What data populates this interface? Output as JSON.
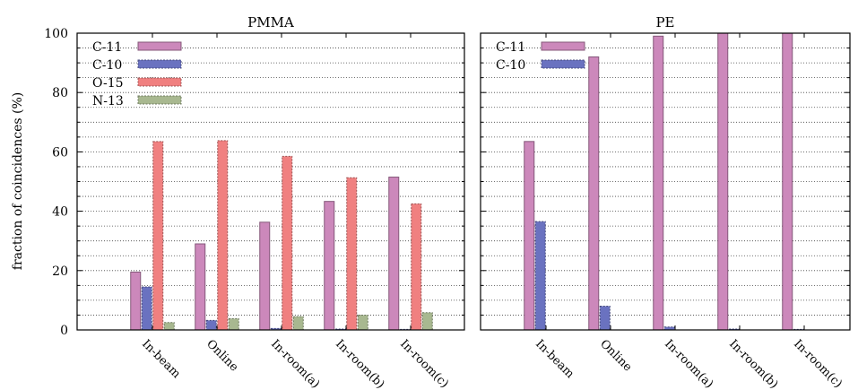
{
  "figure": {
    "ylabel": "fraction of coincidences (%)"
  },
  "colors": {
    "C-11": "#cc88bb",
    "C-10": "#6a72c0",
    "O-15": "#f08080",
    "N-13": "#a8b890"
  },
  "chart_data": [
    {
      "type": "bar",
      "title": "PMMA",
      "categories": [
        "In-beam",
        "Online",
        "In-room(a)",
        "In-room(b)",
        "In-room(c)"
      ],
      "series": [
        {
          "name": "C-11",
          "values": [
            19.5,
            29.0,
            36.3,
            43.3,
            51.5
          ]
        },
        {
          "name": "C-10",
          "values": [
            14.5,
            3.2,
            0.5,
            0.3,
            0.2
          ]
        },
        {
          "name": "O-15",
          "values": [
            63.5,
            63.8,
            58.5,
            51.3,
            42.5
          ]
        },
        {
          "name": "N-13",
          "values": [
            2.5,
            3.8,
            4.5,
            5.0,
            5.8
          ]
        }
      ],
      "ylabel": "fraction of coincidences (%)",
      "ylim": [
        0,
        100
      ],
      "yticks": [
        0,
        20,
        40,
        60,
        80,
        100
      ],
      "grid": "horizontal dotted",
      "legend": "top-left"
    },
    {
      "type": "bar",
      "title": "PE",
      "categories": [
        "In-beam",
        "Online",
        "In-room(a)",
        "In-room(b)",
        "In-room(c)"
      ],
      "series": [
        {
          "name": "C-11",
          "values": [
            63.5,
            92.0,
            99.0,
            100.0,
            100.0
          ]
        },
        {
          "name": "C-10",
          "values": [
            36.5,
            8.0,
            1.0,
            0.3,
            0.2
          ]
        }
      ],
      "ylim": [
        0,
        100
      ],
      "grid": "horizontal dotted",
      "legend": "top-left"
    }
  ]
}
